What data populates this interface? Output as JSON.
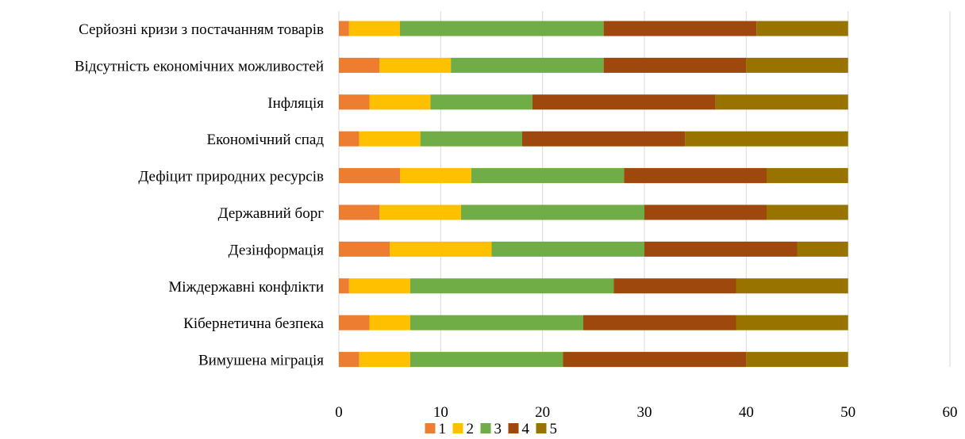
{
  "chart_data": {
    "type": "bar",
    "orientation": "horizontal",
    "stacked": true,
    "title": "",
    "xlabel": "",
    "ylabel": "",
    "xlim": [
      0,
      60
    ],
    "xticks": [
      "0",
      "10",
      "20",
      "30",
      "40",
      "50",
      "60"
    ],
    "grid": true,
    "legend_position": "bottom",
    "categories": [
      "Серйозні кризи з постачанням товарів",
      "Відсутність економічних можливостей",
      "Інфляція",
      "Економічний спад",
      "Дефіцит природних ресурсів",
      "Державний борг",
      "Дезінформація",
      "Міждержавні конфлікти",
      "Кібернетична безпека",
      "Вимушена міграція"
    ],
    "series": [
      {
        "name": "1",
        "color": "#ed7d31",
        "values": [
          1,
          4,
          3,
          2,
          6,
          4,
          5,
          1,
          3,
          2
        ]
      },
      {
        "name": "2",
        "color": "#ffc000",
        "values": [
          5,
          7,
          6,
          6,
          7,
          8,
          10,
          6,
          4,
          5
        ]
      },
      {
        "name": "3",
        "color": "#70ad47",
        "values": [
          20,
          15,
          10,
          10,
          15,
          18,
          15,
          20,
          17,
          15
        ]
      },
      {
        "name": "4",
        "color": "#9e480e",
        "values": [
          15,
          14,
          18,
          16,
          14,
          12,
          15,
          12,
          15,
          18
        ]
      },
      {
        "name": "5",
        "color": "#997300",
        "values": [
          9,
          10,
          13,
          16,
          8,
          8,
          5,
          11,
          11,
          10
        ]
      }
    ]
  }
}
